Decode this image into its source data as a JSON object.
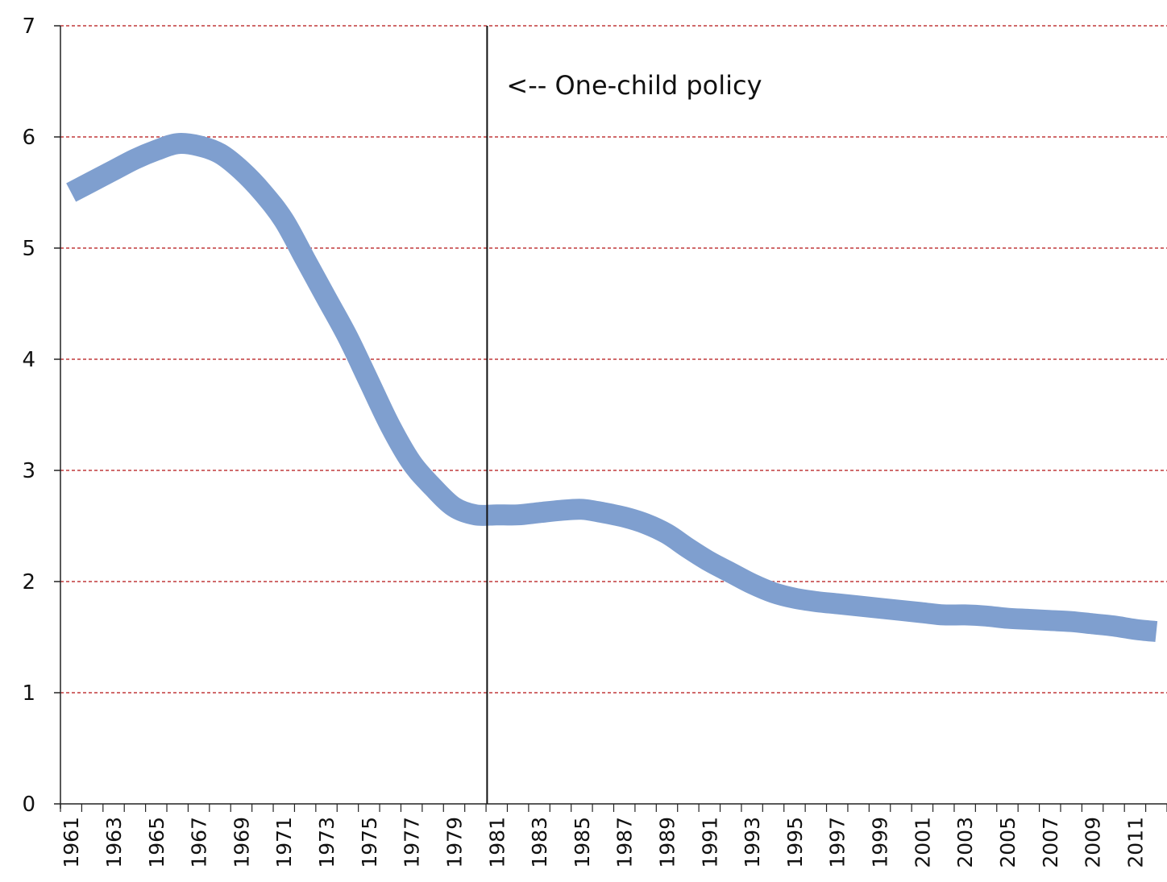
{
  "chart_data": {
    "type": "line",
    "title": "",
    "xlabel": "",
    "ylabel": "",
    "ylim": [
      0,
      7
    ],
    "yticks": [
      0,
      1,
      2,
      3,
      4,
      5,
      6,
      7
    ],
    "x_tick_labels": [
      "1961",
      "1963",
      "1965",
      "1967",
      "1969",
      "1971",
      "1973",
      "1975",
      "1977",
      "1979",
      "1981",
      "1983",
      "1985",
      "1987",
      "1989",
      "1991",
      "1993",
      "1995",
      "1997",
      "1999",
      "2001",
      "2003",
      "2005",
      "2007",
      "2009",
      "2011"
    ],
    "grid": "horizontal dashed",
    "legend": "none",
    "colors": {
      "line": "#7f9fcf",
      "grid": "#c0383a",
      "axis": "#222222"
    },
    "x": [
      1961,
      1962,
      1963,
      1964,
      1965,
      1966,
      1967,
      1968,
      1969,
      1970,
      1971,
      1972,
      1973,
      1974,
      1975,
      1976,
      1977,
      1978,
      1979,
      1980,
      1981,
      1982,
      1983,
      1984,
      1985,
      1986,
      1987,
      1988,
      1989,
      1990,
      1991,
      1992,
      1993,
      1994,
      1995,
      1996,
      1997,
      1998,
      1999,
      2000,
      2001,
      2002,
      2003,
      2004,
      2005,
      2006,
      2007,
      2008,
      2009,
      2010,
      2011,
      2012
    ],
    "series": [
      {
        "values": [
          5.5,
          5.6,
          5.7,
          5.8,
          5.88,
          5.94,
          5.92,
          5.85,
          5.7,
          5.5,
          5.25,
          4.9,
          4.55,
          4.2,
          3.8,
          3.4,
          3.07,
          2.85,
          2.67,
          2.6,
          2.6,
          2.6,
          2.62,
          2.64,
          2.65,
          2.62,
          2.58,
          2.52,
          2.43,
          2.3,
          2.18,
          2.08,
          1.98,
          1.9,
          1.85,
          1.82,
          1.8,
          1.78,
          1.76,
          1.74,
          1.72,
          1.7,
          1.7,
          1.69,
          1.67,
          1.66,
          1.65,
          1.64,
          1.62,
          1.6,
          1.57,
          1.55
        ]
      }
    ],
    "annotations": [
      {
        "x": 1981,
        "text": "<-- One-child policy"
      }
    ]
  }
}
